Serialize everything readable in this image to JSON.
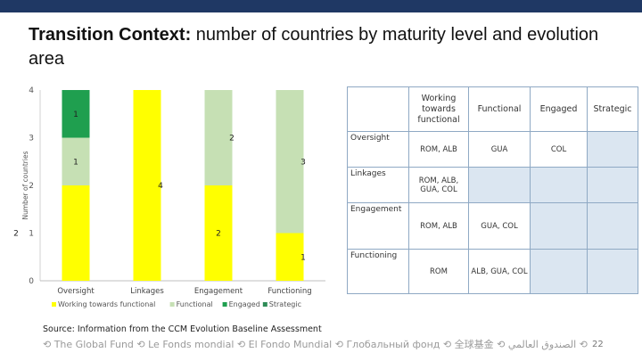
{
  "slide": {
    "title_bold": "Transition Context:",
    "title_rest": " number of countries by maturity level and evolution area",
    "source": "Source: Information from the CCM Evolution Baseline Assessment",
    "footer": "⟲ The Global Fund ⟲ Le Fonds mondial ⟲ El Fondo Mundial ⟲ Глобальный фонд ⟲ 全球基金 ⟲ الصندوق العالمي ⟲",
    "page_number": "22"
  },
  "chart_data": {
    "type": "bar",
    "stacked": true,
    "title": "",
    "xlabel": "",
    "ylabel": "Number of countries",
    "ylim": [
      0,
      4
    ],
    "yticks": [
      "0",
      "1",
      "2",
      "3",
      "4"
    ],
    "categories": [
      "Oversight",
      "Linkages",
      "Engagement",
      "Functioning"
    ],
    "series": [
      {
        "name": "Working towards functional",
        "color": "#ffff00",
        "values": [
          2,
          4,
          2,
          1
        ]
      },
      {
        "name": "Functional",
        "color": "#c6e0b4",
        "values": [
          1,
          0,
          2,
          3
        ]
      },
      {
        "name": "Engaged",
        "color": "#1f9f4f",
        "values": [
          1,
          0,
          0,
          0
        ]
      },
      {
        "name": "Strategic",
        "color": "#2e8b57",
        "values": [
          0,
          0,
          0,
          0
        ]
      }
    ],
    "data_labels": [
      {
        "category": 0,
        "series": 0,
        "text": "2"
      },
      {
        "category": 0,
        "series": 1,
        "text": "1"
      },
      {
        "category": 0,
        "series": 2,
        "text": "1"
      },
      {
        "category": 1,
        "series": 0,
        "text": "4"
      },
      {
        "category": 2,
        "series": 0,
        "text": "2"
      },
      {
        "category": 2,
        "series": 1,
        "text": "2"
      },
      {
        "category": 3,
        "series": 0,
        "text": "1"
      },
      {
        "category": 3,
        "series": 1,
        "text": "3"
      }
    ],
    "grid": false,
    "legend_position": "bottom"
  },
  "matrix": {
    "columns": [
      "",
      "Working towards functional",
      "Functional",
      "Engaged",
      "Strategic"
    ],
    "rows": [
      {
        "label": "Oversight",
        "cells": [
          "ROM, ALB",
          "GUA",
          "COL",
          ""
        ]
      },
      {
        "label": "Linkages",
        "cells": [
          "ROM, ALB, GUA, COL",
          "",
          "",
          ""
        ]
      },
      {
        "label": "Engagement",
        "cells": [
          "ROM, ALB",
          "GUA, COL",
          "",
          ""
        ]
      },
      {
        "label": "Functioning",
        "cells": [
          "ROM",
          "ALB, GUA, COL",
          "",
          ""
        ]
      }
    ]
  }
}
